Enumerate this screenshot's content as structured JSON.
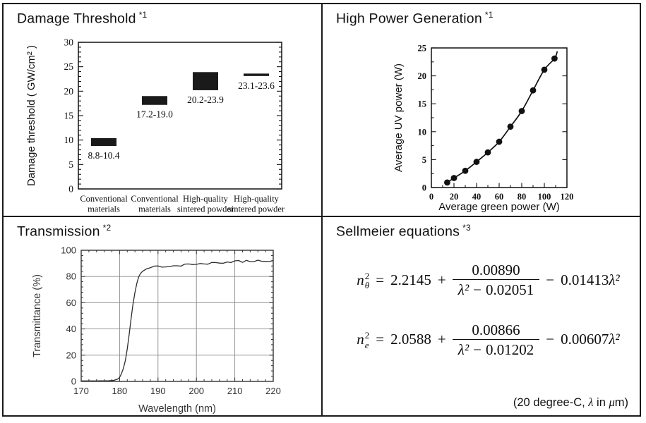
{
  "panels": {
    "damage_threshold": {
      "title": "Damage Threshold",
      "footnote": "*1"
    },
    "high_power": {
      "title": "High Power Generation",
      "footnote": "*1"
    },
    "transmission": {
      "title": "Transmission",
      "footnote": "*2"
    },
    "sellmeier": {
      "title": "Sellmeier equations",
      "footnote": "*3",
      "equations": [
        {
          "lhs": {
            "base": "n",
            "sup": "2",
            "sub": "θ"
          },
          "equals": "=",
          "const_term": "2.2145",
          "plus": "+",
          "frac": {
            "num": "0.00890",
            "den_var": "λ²",
            "den_op": "−",
            "den_const": "0.02051"
          },
          "minus": "−",
          "tail_coef": "0.01413",
          "tail_var": "λ²"
        },
        {
          "lhs": {
            "base": "n",
            "sup": "2",
            "sub": "e"
          },
          "equals": "=",
          "const_term": "2.0588",
          "plus": "+",
          "frac": {
            "num": "0.00866",
            "den_var": "λ²",
            "den_op": "−",
            "den_const": "0.01202"
          },
          "minus": "−",
          "tail_coef": "0.00607",
          "tail_var": "λ²"
        }
      ],
      "note_pre": "(20 degree-C, ",
      "note_lambda": "λ",
      "note_mid": " in ",
      "note_mu": "μ",
      "note_post": "m)"
    }
  },
  "chart_data": [
    {
      "id": "damage",
      "type": "bar",
      "subtype": "floating-range-bar",
      "title": "Damage Threshold",
      "ylabel": "Damage threshold ( GW/cm² )",
      "ylim": [
        0,
        30
      ],
      "yticks": [
        0,
        5,
        10,
        15,
        20,
        25,
        30
      ],
      "ytick_minor_step": 1,
      "grid": false,
      "categories": [
        "Conventional\nmaterials",
        "Conventional\nmaterials",
        "High-quality\nsintered powder",
        "High-quality\nsintered powder"
      ],
      "bars": [
        {
          "low": 8.8,
          "high": 10.4,
          "label": "8.8-10.4"
        },
        {
          "low": 17.2,
          "high": 19.0,
          "label": "17.2-19.0"
        },
        {
          "low": 20.2,
          "high": 23.9,
          "label": "20.2-23.9"
        },
        {
          "low": 23.1,
          "high": 23.6,
          "label": "23.1-23.6"
        }
      ]
    },
    {
      "id": "high_power",
      "type": "scatter",
      "title": "High Power Generation",
      "xlabel": "Average green power (W)",
      "ylabel": "Average UV power (W)",
      "xlim": [
        0,
        120
      ],
      "ylim": [
        0,
        25
      ],
      "xticks": [
        0,
        20,
        40,
        60,
        80,
        100,
        120
      ],
      "yticks": [
        0,
        5,
        10,
        15,
        20,
        25
      ],
      "xtick_minor_step": 10,
      "ytick_minor_step": 2.5,
      "grid": false,
      "fit_line": true,
      "points": [
        [
          14,
          0.9
        ],
        [
          20,
          1.7
        ],
        [
          30,
          3.0
        ],
        [
          40,
          4.6
        ],
        [
          50,
          6.3
        ],
        [
          60,
          8.2
        ],
        [
          70,
          10.9
        ],
        [
          80,
          13.7
        ],
        [
          90,
          17.4
        ],
        [
          100,
          21.1
        ],
        [
          109,
          23.1
        ]
      ]
    },
    {
      "id": "transmission",
      "type": "line",
      "title": "Transmission",
      "xlabel": "Wavelength (nm)",
      "ylabel": "Transmittance (%)",
      "xlim": [
        170,
        220
      ],
      "ylim": [
        0,
        100
      ],
      "xticks": [
        170,
        180,
        190,
        200,
        210,
        220
      ],
      "yticks": [
        0,
        20,
        40,
        60,
        80,
        100
      ],
      "xtick_minor_step": 2,
      "ytick_minor_step": 4,
      "grid": true,
      "curve": [
        [
          170,
          0.4
        ],
        [
          174,
          0.4
        ],
        [
          177,
          0.5
        ],
        [
          178.5,
          0.8
        ],
        [
          179.5,
          1.8
        ],
        [
          180,
          3
        ],
        [
          180.5,
          6
        ],
        [
          181,
          10
        ],
        [
          181.5,
          16
        ],
        [
          182,
          25
        ],
        [
          182.5,
          36
        ],
        [
          183,
          48
        ],
        [
          183.5,
          59
        ],
        [
          184,
          68
        ],
        [
          184.5,
          75
        ],
        [
          185,
          80
        ],
        [
          185.5,
          82.5
        ],
        [
          186,
          84
        ],
        [
          187,
          86
        ],
        [
          188,
          87
        ],
        [
          189,
          87.4
        ],
        [
          190,
          87.5
        ],
        [
          191,
          87.2
        ],
        [
          192,
          87.8
        ],
        [
          193,
          88
        ],
        [
          194,
          88.2
        ],
        [
          195,
          88.5
        ],
        [
          196,
          88.3
        ],
        [
          197,
          88.8
        ],
        [
          198,
          89
        ],
        [
          199,
          89.2
        ],
        [
          200,
          89.5
        ],
        [
          201,
          89.8
        ],
        [
          202,
          89.6
        ],
        [
          203,
          90
        ],
        [
          204,
          90.3
        ],
        [
          205,
          90.1
        ],
        [
          206,
          90.4
        ],
        [
          207,
          90.8
        ],
        [
          208,
          91
        ],
        [
          209,
          90.7
        ],
        [
          210,
          91.2
        ],
        [
          211,
          91.5
        ],
        [
          212,
          91.3
        ],
        [
          213,
          91.7
        ],
        [
          214,
          92
        ],
        [
          215,
          91.6
        ],
        [
          216,
          92
        ],
        [
          217,
          91.8
        ],
        [
          218,
          92.2
        ],
        [
          219,
          91.8
        ],
        [
          220,
          92.2
        ]
      ]
    }
  ],
  "colors": {
    "ink": "#111111",
    "scan_ink": "#333333",
    "grid": "#8a8a8a",
    "bar_fill": "#1a1a1a"
  }
}
